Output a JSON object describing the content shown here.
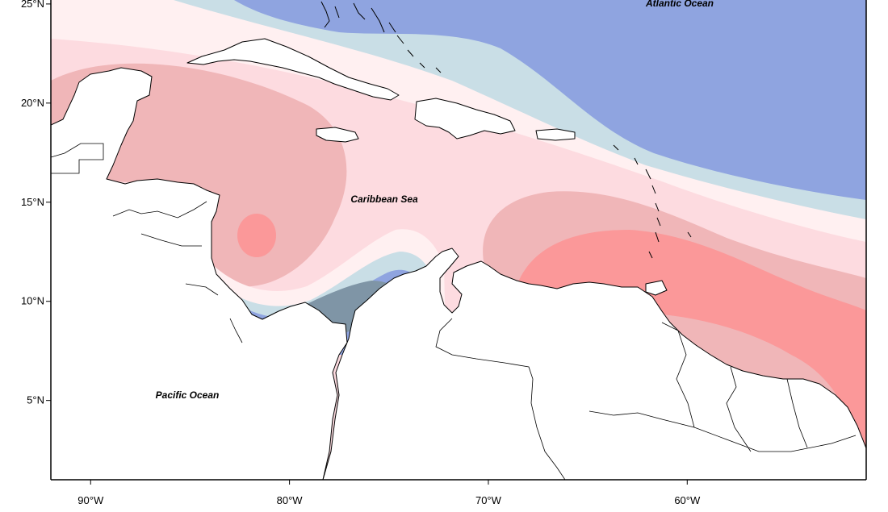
{
  "map": {
    "extent": {
      "lon_min": -92,
      "lon_max": -51,
      "lat_min": 1,
      "lat_max": 25.2
    },
    "x_ticks": [
      {
        "lon": -90,
        "label": "90°W"
      },
      {
        "lon": -80,
        "label": "80°W"
      },
      {
        "lon": -70,
        "label": "70°W"
      },
      {
        "lon": -60,
        "label": "60°W"
      }
    ],
    "y_ticks": [
      {
        "lat": 25,
        "label": "25°N"
      },
      {
        "lat": 20,
        "label": "20°N"
      },
      {
        "lat": 15,
        "label": "15°N"
      },
      {
        "lat": 10,
        "label": "10°N"
      },
      {
        "lat": 5,
        "label": "5°N"
      }
    ],
    "labels": {
      "atlantic": "Atlantic Ocean",
      "caribbean": "Caribbean Sea",
      "pacific": "Pacific Ocean"
    },
    "colors": {
      "strong_blue": "#7f95a6",
      "blue": "#8fa4e0",
      "light_blue": "#c9dee6",
      "very_light_pink": "#fff0f1",
      "light_pink": "#fddbe0",
      "pink": "#f0b6b8",
      "red": "#fb9899",
      "land": "#ffffff",
      "coast": "#000000"
    }
  }
}
